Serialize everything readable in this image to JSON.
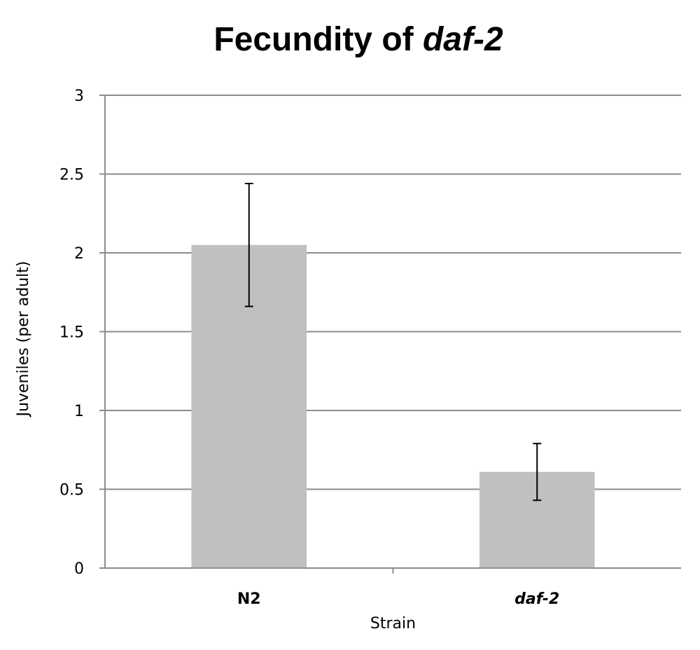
{
  "chart_data": {
    "type": "bar",
    "title": "Fecundity of ",
    "title_italic": "daf-2",
    "xlabel": "Strain",
    "ylabel": "Juveniles (per adult)",
    "categories": [
      "N2",
      "daf-2"
    ],
    "category_italic": [
      false,
      true
    ],
    "values": [
      2.05,
      0.61
    ],
    "error_low": [
      1.66,
      0.43
    ],
    "error_high": [
      2.44,
      0.79
    ],
    "ylim": [
      0,
      3
    ],
    "yticks": [
      0,
      0.5,
      1,
      1.5,
      2,
      2.5,
      3
    ],
    "ytick_labels": [
      "0",
      "0.5",
      "1",
      "1.5",
      "2",
      "2.5",
      "3"
    ],
    "grid": true,
    "legend": "none",
    "bar_color": "#c0c0c0",
    "grid_color": "#8c8c8c",
    "errorbar_color": "#000000"
  }
}
